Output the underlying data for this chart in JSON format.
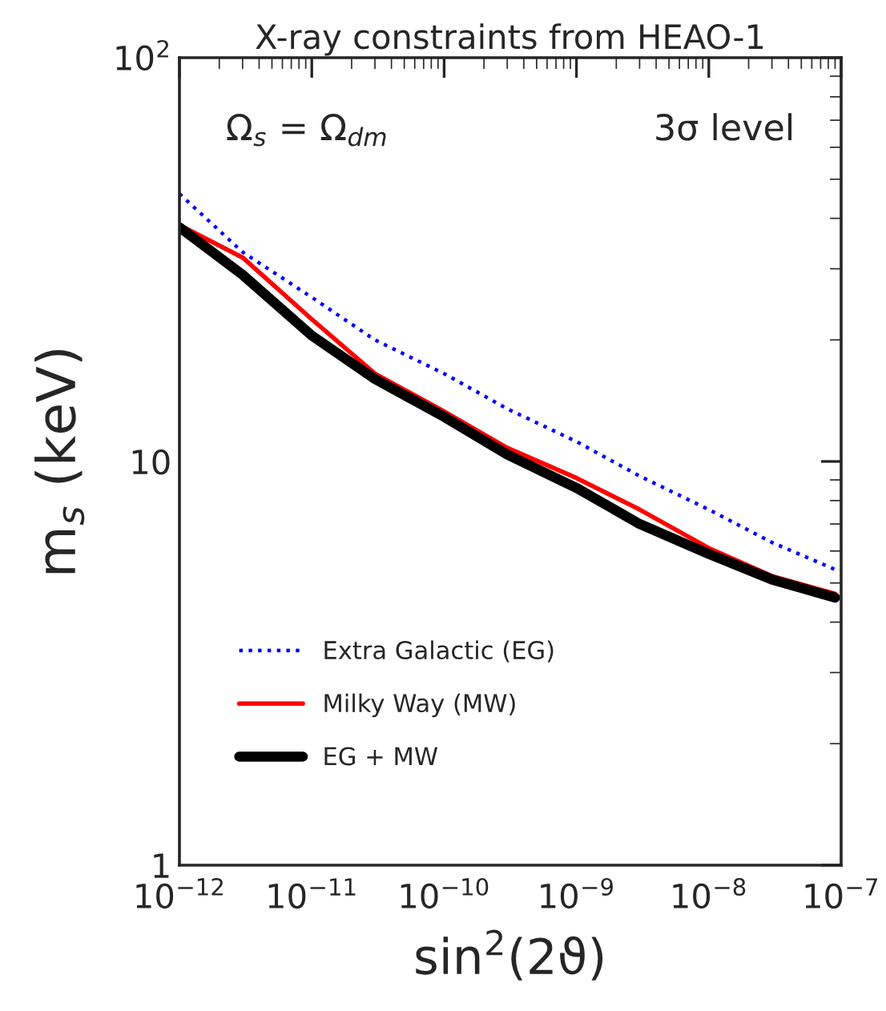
{
  "chart_data": {
    "type": "line",
    "title": "X-ray constraints from HEAO-1",
    "xlabel": "sin$^{2}$(2ϑ)",
    "ylabel": "m$_{s}$ (keV)",
    "annotations": [
      "Ω$_{s}$ = Ω$_{dm}$",
      "3σ level"
    ],
    "log": "xy",
    "xlim": [
      1e-12,
      1e-07
    ],
    "ylim": [
      1,
      100
    ],
    "xticks": [
      {
        "value": 1e-12,
        "label": "10$^{−12}$"
      },
      {
        "value": 1e-11,
        "label": "10$^{−11}$"
      },
      {
        "value": 1e-10,
        "label": "10$^{−10}$"
      },
      {
        "value": 1e-09,
        "label": "10$^{−9}$"
      },
      {
        "value": 1e-08,
        "label": "10$^{−8}$"
      },
      {
        "value": 1e-07,
        "label": "10$^{−7}$"
      }
    ],
    "yticks": [
      1,
      10,
      {
        "value": 100,
        "label": "10$^{2}$"
      }
    ],
    "x": [
      1e-12,
      3e-12,
      1e-11,
      3e-11,
      1e-10,
      3e-10,
      1e-09,
      3e-09,
      1e-08,
      3e-08,
      9e-08
    ],
    "legend": "bottom left",
    "grid": false,
    "series": [
      {
        "name": "Extra Galactic (EG)",
        "color": "#0000ff",
        "line_style": "dotted",
        "values": [
          46,
          33,
          25.5,
          20,
          16.5,
          13.5,
          11.2,
          9.2,
          7.6,
          6.3,
          5.4
        ]
      },
      {
        "name": "Milky Way (MW)",
        "color": "#ff0000",
        "line_style": "solid",
        "values": [
          38.5,
          32,
          22.5,
          16.5,
          13.3,
          10.8,
          9.1,
          7.6,
          6.1,
          5.2,
          4.7
        ]
      },
      {
        "name": "EG + MW",
        "color": "#000000",
        "line_style": "solid",
        "values": [
          38,
          29,
          20.5,
          16,
          12.9,
          10.4,
          8.6,
          7.0,
          5.9,
          5.1,
          4.6
        ]
      }
    ]
  }
}
